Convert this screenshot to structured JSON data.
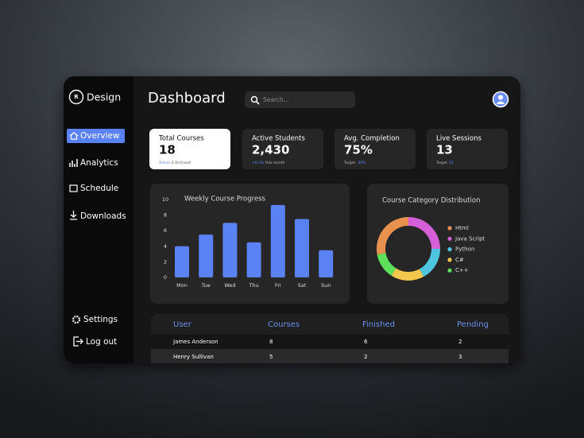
{
  "sidebar": {
    "logo": "Design",
    "nav": [
      "Overview",
      "Analytics",
      "Schedule",
      "Downloads"
    ],
    "footer": [
      "Settings",
      "Log out"
    ]
  },
  "header": {
    "title": "Dashboard",
    "search_placeholder": "Search..."
  },
  "cards": [
    {
      "label": "Total Courses",
      "value": "18",
      "note_highlight": "Active",
      "note": "6 Archived"
    },
    {
      "label": "Active Students",
      "value": "2,430",
      "note_highlight": "+8.2%",
      "note": "this month"
    },
    {
      "label": "Avg. Completion",
      "value": "75%",
      "note": "Target:",
      "note_highlight": "80%"
    },
    {
      "label": "Live Sessions",
      "value": "13",
      "note": "Target",
      "note_highlight": "15"
    }
  ],
  "chart_data": [
    {
      "type": "bar",
      "title": "Weekly Course Progress",
      "categories": [
        "Mon",
        "Tue",
        "Wed",
        "Thu",
        "Fri",
        "Sat",
        "Sun"
      ],
      "values": [
        4,
        5.5,
        7,
        4.5,
        9.3,
        7.5,
        3.5
      ],
      "color": "#5b82f5",
      "ylim": [
        0,
        10
      ],
      "yticks": [
        0,
        2,
        4,
        6,
        8,
        10
      ],
      "grid": false
    },
    {
      "type": "pie",
      "title": "Course Category Distribution",
      "categories": [
        "Html",
        "Java Script",
        "Python",
        "C#",
        "C++"
      ],
      "values": [
        28,
        25,
        17,
        17,
        13
      ],
      "colors": [
        "#e8914f",
        "#d65fd8",
        "#4fc6e0",
        "#f3c64c",
        "#5ee05a"
      ],
      "donut": true
    }
  ],
  "table": {
    "columns": [
      "User",
      "Courses",
      "Finished",
      "Pending"
    ],
    "rows": [
      [
        "James Anderson",
        "8",
        "6",
        "2"
      ],
      [
        "Henry Sullivan",
        "5",
        "2",
        "3"
      ]
    ]
  }
}
